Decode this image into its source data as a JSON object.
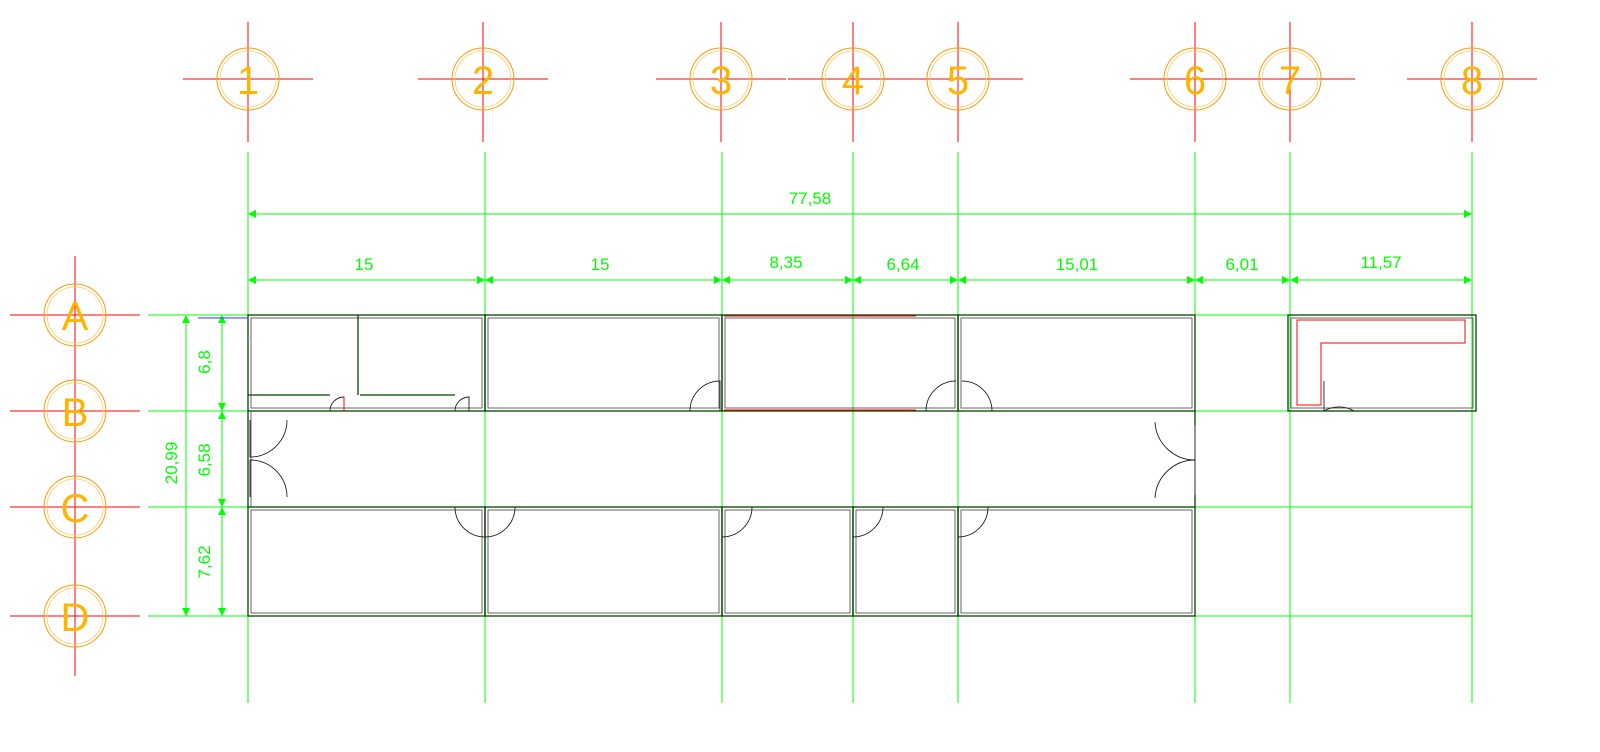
{
  "axes": {
    "columns": [
      "1",
      "2",
      "3",
      "4",
      "5",
      "6",
      "7",
      "8"
    ],
    "rows": [
      "A",
      "B",
      "C",
      "D"
    ]
  },
  "dimensions": {
    "overall": "77,58",
    "spans": [
      "15",
      "15",
      "8,35",
      "6,64",
      "15,01",
      "6,01",
      "11,57"
    ],
    "vertical_total": "20,99",
    "vertical_spans": [
      "6,8",
      "6,58",
      "7,62"
    ]
  },
  "colors": {
    "grid": "#00ff00",
    "axis_text": "#ffb400",
    "axis_cross": "#ff0000",
    "wall": "#004400"
  }
}
